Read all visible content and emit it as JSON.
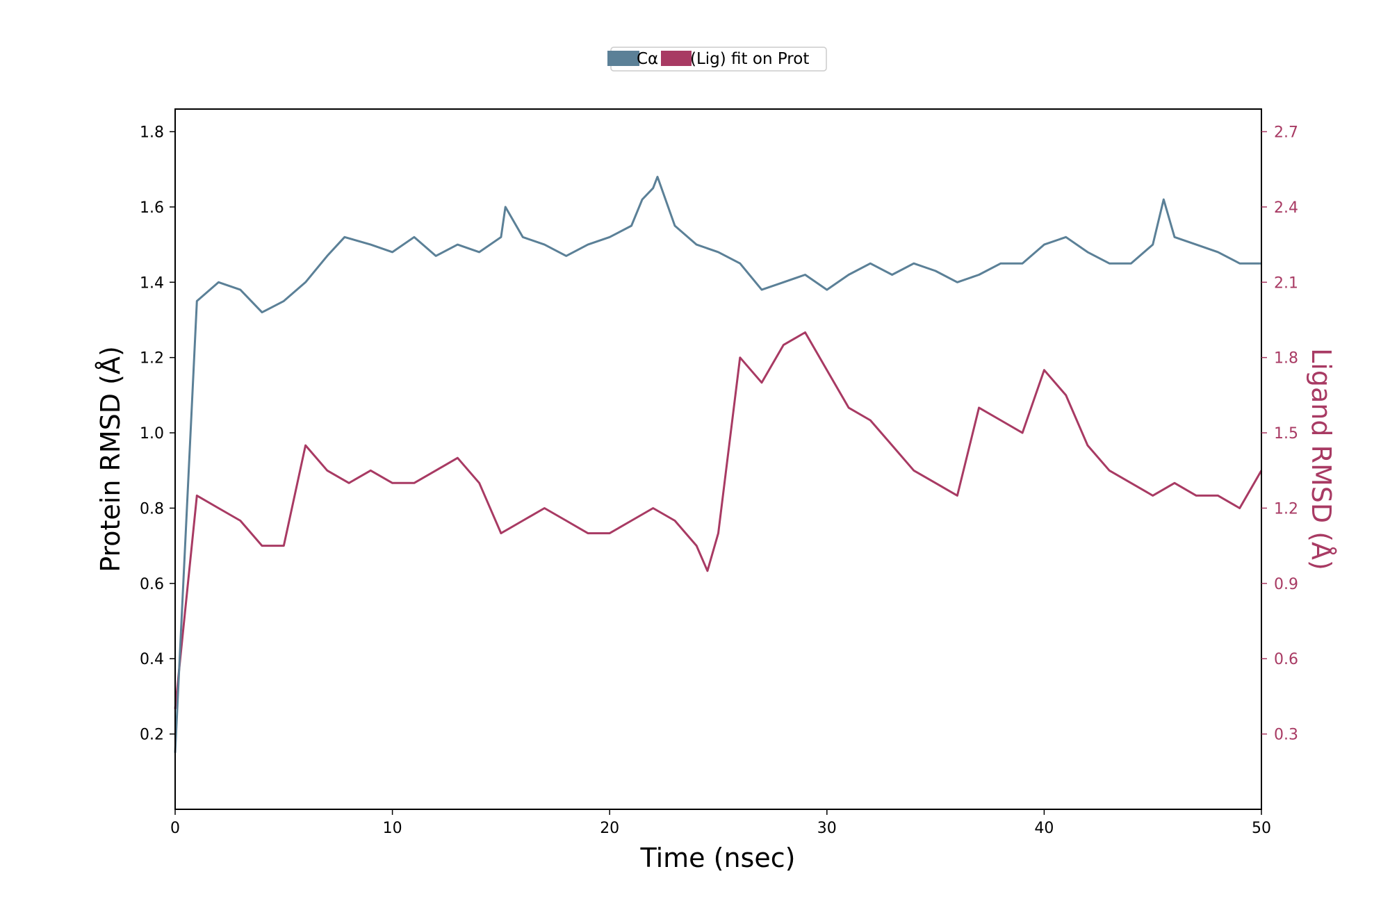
{
  "colors": {
    "protein": "#5b8097",
    "ligand": "#a83a63",
    "axis": "#000000"
  },
  "chart_data": {
    "type": "line",
    "title": "",
    "xlabel": "Time (nsec)",
    "ylabel_left": "Protein RMSD (Å)",
    "ylabel_right": "Ligand RMSD (Å)",
    "xlim": [
      0,
      50
    ],
    "ylim_left": [
      0.0,
      1.86
    ],
    "ylim_right": [
      0.0,
      2.79
    ],
    "x_ticks": [
      "0",
      "10",
      "20",
      "30",
      "40",
      "50"
    ],
    "y_ticks_left": [
      "0.2",
      "0.4",
      "0.6",
      "0.8",
      "1.0",
      "1.2",
      "1.4",
      "1.6",
      "1.8"
    ],
    "y_ticks_right": [
      "0.3",
      "0.6",
      "0.9",
      "1.2",
      "1.5",
      "1.8",
      "2.1",
      "2.4",
      "2.7"
    ],
    "legend": {
      "placement": "top-center",
      "entries": [
        "Cα",
        "(Lig) fit on Prot"
      ]
    },
    "grid": false,
    "series": [
      {
        "name": "Cα",
        "axis": "left",
        "x": [
          0,
          1,
          2,
          3,
          4,
          5,
          6,
          7,
          7.8,
          9,
          10,
          11,
          12,
          13,
          14,
          15,
          15.2,
          16,
          17,
          18,
          19,
          20,
          21,
          21.5,
          22,
          22.2,
          23,
          24,
          25,
          26,
          27,
          28,
          29,
          30,
          31,
          32,
          33,
          34,
          35,
          36,
          37,
          38,
          39,
          40,
          41,
          42,
          43,
          44,
          45,
          45.5,
          46,
          47,
          48,
          49,
          50
        ],
        "y": [
          0.15,
          1.35,
          1.4,
          1.38,
          1.32,
          1.35,
          1.4,
          1.47,
          1.52,
          1.5,
          1.48,
          1.52,
          1.47,
          1.5,
          1.48,
          1.52,
          1.6,
          1.52,
          1.5,
          1.47,
          1.5,
          1.52,
          1.55,
          1.62,
          1.65,
          1.68,
          1.55,
          1.5,
          1.48,
          1.45,
          1.38,
          1.4,
          1.42,
          1.38,
          1.42,
          1.45,
          1.42,
          1.45,
          1.43,
          1.4,
          1.42,
          1.45,
          1.45,
          1.5,
          1.52,
          1.48,
          1.45,
          1.45,
          1.5,
          1.62,
          1.52,
          1.5,
          1.48,
          1.45,
          1.45
        ]
      },
      {
        "name": "(Lig) fit on Prot",
        "axis": "right",
        "x": [
          0,
          1,
          2,
          3,
          4,
          5,
          6,
          7,
          8,
          9,
          10,
          11,
          12,
          13,
          14,
          15,
          16,
          17,
          18,
          19,
          20,
          21,
          22,
          23,
          24,
          24.5,
          25,
          26,
          27,
          28,
          29,
          30,
          31,
          32,
          33,
          34,
          35,
          36,
          37,
          38,
          39,
          40,
          41,
          42,
          43,
          44,
          45,
          46,
          47,
          48,
          49,
          50
        ],
        "y": [
          0.4,
          1.25,
          1.2,
          1.15,
          1.05,
          1.05,
          1.45,
          1.35,
          1.3,
          1.35,
          1.3,
          1.3,
          1.35,
          1.4,
          1.3,
          1.1,
          1.15,
          1.2,
          1.15,
          1.1,
          1.1,
          1.15,
          1.2,
          1.15,
          1.05,
          0.95,
          1.1,
          1.8,
          1.7,
          1.85,
          1.9,
          1.75,
          1.6,
          1.55,
          1.45,
          1.35,
          1.3,
          1.25,
          1.6,
          1.55,
          1.5,
          1.75,
          1.65,
          1.45,
          1.35,
          1.3,
          1.25,
          1.3,
          1.25,
          1.25,
          1.2,
          1.35
        ]
      }
    ]
  }
}
